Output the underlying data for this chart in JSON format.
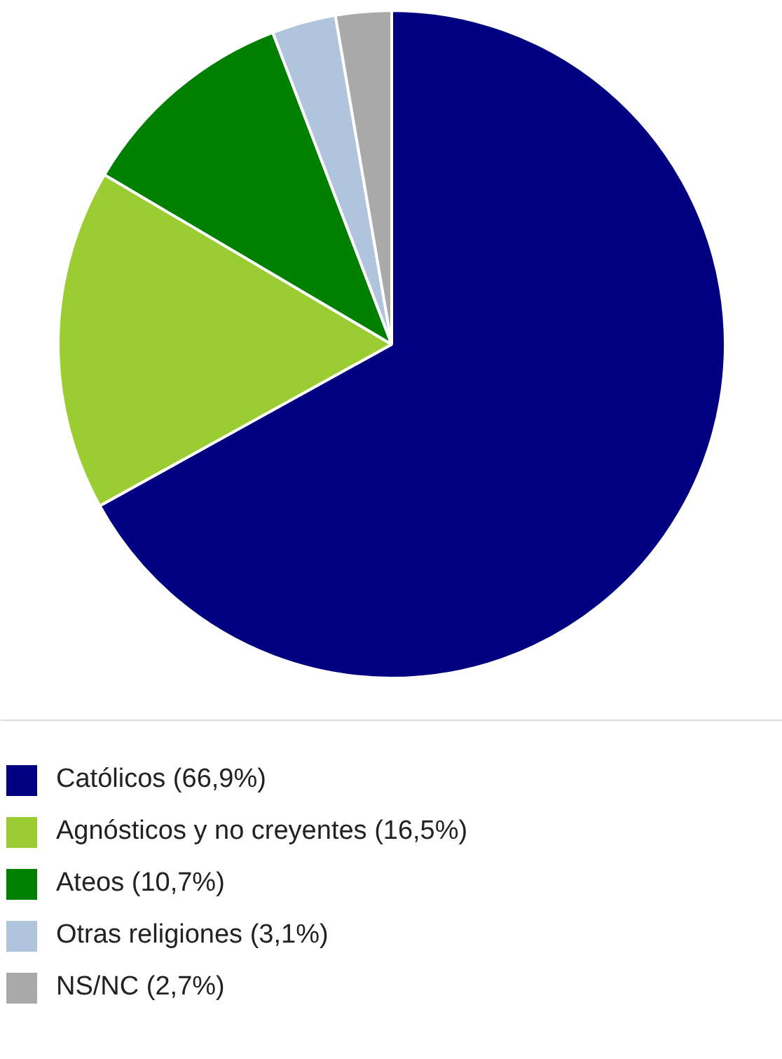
{
  "chart_data": {
    "type": "pie",
    "categories": [
      "Católicos",
      "Agnósticos y no creyentes",
      "Ateos",
      "Otras religiones",
      "NS/NC"
    ],
    "values": [
      66.9,
      16.5,
      10.7,
      3.1,
      2.7
    ],
    "colors": [
      "#000080",
      "#9acd32",
      "#008000",
      "#b0c4de",
      "#a9a9a9"
    ],
    "value_labels": [
      "(66,9%)",
      "(16,5%)",
      "(10,7%)",
      "(3,1%)",
      "(2,7%)"
    ],
    "legend": "bottom"
  }
}
